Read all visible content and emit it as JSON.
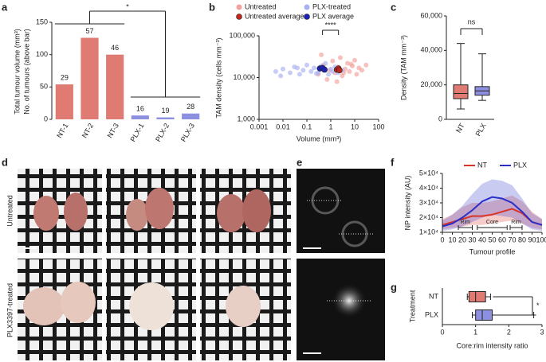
{
  "chart_data": [
    {
      "type": "bar",
      "panel": "a",
      "ylabel": [
        "Total tumour volume (mm³)",
        "No. of tumours (above bar)"
      ],
      "categories": [
        "NT-1",
        "NT-2",
        "NT-3",
        "PLX-1",
        "PLX-2",
        "PLX-3"
      ],
      "values": [
        54,
        126,
        100,
        6,
        3,
        9
      ],
      "counts": [
        29,
        57,
        46,
        16,
        19,
        28
      ],
      "colors": [
        "#e07b73",
        "#e07b73",
        "#e07b73",
        "#8d8fe0",
        "#8d8fe0",
        "#8d8fe0"
      ],
      "ylim": [
        0,
        150
      ],
      "yticks": [
        0,
        50,
        100,
        150
      ],
      "significance": "*"
    },
    {
      "type": "scatter",
      "panel": "b",
      "xlabel": "Volume (mm³)",
      "ylabel": "TAM density (cells mm⁻³)",
      "log_x": true,
      "log_y": true,
      "xlim": [
        0.001,
        100
      ],
      "xticks": [
        0.001,
        0.01,
        0.1,
        1,
        10,
        100
      ],
      "ylim": [
        1000,
        100000
      ],
      "yticks": [
        {
          "value": 1000,
          "label": "1,000"
        },
        {
          "value": 10000,
          "label": "10,000"
        },
        {
          "value": 100000,
          "label": "100,000"
        }
      ],
      "series": [
        {
          "name": "Untreated",
          "color": "#f2a19b",
          "x": [
            0.3,
            0.5,
            0.7,
            0.9,
            1.2,
            1.5,
            2,
            2.5,
            3,
            4,
            5,
            6,
            8,
            10,
            12,
            15,
            20,
            30,
            0.4,
            1.8,
            3.5,
            7
          ],
          "y": [
            12000,
            20000,
            9000,
            15000,
            25000,
            13000,
            18000,
            30000,
            11000,
            16000,
            22000,
            14000,
            19000,
            26000,
            12000,
            17000,
            15000,
            20000,
            35000,
            8000,
            13000,
            21000
          ]
        },
        {
          "name": "PLX-treated",
          "color": "#a9b0f2",
          "x": [
            0.005,
            0.008,
            0.01,
            0.02,
            0.03,
            0.05,
            0.07,
            0.1,
            0.15,
            0.2,
            0.3,
            0.4,
            0.5,
            0.6,
            0.8,
            1,
            1.2,
            1.5,
            2,
            3,
            0.04,
            0.25
          ],
          "y": [
            14000,
            11000,
            16000,
            13000,
            18000,
            12000,
            15000,
            20000,
            14000,
            17000,
            13000,
            19000,
            15000,
            22000,
            12000,
            16000,
            14000,
            18000,
            13000,
            15000,
            17000,
            12500
          ]
        },
        {
          "name": "Untreated average",
          "color": "#c0281e",
          "x": [
            1.8,
            2.1,
            2.3
          ],
          "y": [
            15500,
            16500,
            15000
          ]
        },
        {
          "name": "PLX average",
          "color": "#1d22b8",
          "x": [
            0.35,
            0.45,
            0.55
          ],
          "y": [
            16500,
            17000,
            15500
          ]
        }
      ],
      "significance": "****"
    },
    {
      "type": "box",
      "panel": "c",
      "ylabel": "Density (TAM mm⁻³)",
      "categories": [
        "NT",
        "PLX"
      ],
      "boxes": [
        {
          "min": 6000,
          "q1": 12000,
          "median": 15000,
          "q3": 20000,
          "max": 44000
        },
        {
          "min": 11000,
          "q1": 14000,
          "median": 16500,
          "q3": 19000,
          "max": 38000
        }
      ],
      "colors": [
        "#e07b73",
        "#8d8fe0"
      ],
      "ylim": [
        0,
        60000
      ],
      "yticks": [
        0,
        {
          "value": 20000,
          "label": "20,000"
        },
        {
          "value": 40000,
          "label": "40,000"
        },
        {
          "value": 60000,
          "label": "60,000"
        }
      ],
      "significance": "ns"
    },
    {
      "type": "line",
      "panel": "f",
      "xlabel": "Tumour profile",
      "ylabel": "NP intensity (AU)",
      "x": [
        0,
        10,
        20,
        30,
        40,
        50,
        60,
        70,
        80,
        90,
        100
      ],
      "xlim": [
        0,
        100
      ],
      "xticks": [
        0,
        10,
        20,
        30,
        40,
        50,
        60,
        70,
        80,
        90,
        100
      ],
      "ylim": [
        10000,
        50000
      ],
      "yticks": [
        {
          "value": 10000,
          "label": "1×10⁴"
        },
        {
          "value": 20000,
          "label": "2×10⁴"
        },
        {
          "value": 30000,
          "label": "3×10⁴"
        },
        {
          "value": 40000,
          "label": "4×10⁴"
        },
        {
          "value": 50000,
          "label": "5×10⁴"
        }
      ],
      "series": [
        {
          "name": "NT",
          "color": "#d9332a",
          "values": [
            15000,
            17000,
            19000,
            21000,
            21000,
            22000,
            24000,
            26000,
            23000,
            17000,
            15000
          ],
          "lower": [
            12000,
            13000,
            14000,
            15000,
            15000,
            16000,
            17000,
            18000,
            16000,
            13000,
            12000
          ],
          "upper": [
            19000,
            22000,
            27000,
            30000,
            30000,
            31000,
            33000,
            35000,
            31000,
            24000,
            19000
          ]
        },
        {
          "name": "PLX",
          "color": "#2b2fc9",
          "values": [
            14000,
            16000,
            20000,
            25000,
            31000,
            34000,
            33000,
            30000,
            24000,
            17000,
            15000
          ],
          "lower": [
            11000,
            12000,
            14000,
            17000,
            20000,
            22000,
            21000,
            20000,
            16000,
            12000,
            11000
          ],
          "upper": [
            18000,
            22000,
            28000,
            36000,
            43000,
            46000,
            45000,
            42000,
            33000,
            23000,
            19000
          ]
        }
      ],
      "regions": [
        {
          "label": "Rim",
          "range": [
            16,
            30
          ]
        },
        {
          "label": "Core",
          "range": [
            35,
            65
          ]
        },
        {
          "label": "Rim",
          "range": [
            68,
            80
          ]
        }
      ]
    },
    {
      "type": "hbox",
      "panel": "g",
      "xlabel": "Core:rim intensity ratio",
      "ylabel": "Treatment",
      "categories": [
        "NT",
        "PLX"
      ],
      "boxes": [
        {
          "min": 0.75,
          "q1": 0.8,
          "median": 1.0,
          "q3": 1.3,
          "max": 1.45
        },
        {
          "min": 0.9,
          "q1": 1.0,
          "median": 1.2,
          "q3": 1.5,
          "max": 2.75
        }
      ],
      "colors": [
        "#e07b73",
        "#8d8fe0"
      ],
      "xlim": [
        0,
        3
      ],
      "xticks": [
        0,
        1,
        2,
        3
      ],
      "significance": "*"
    }
  ],
  "photos": {
    "panel": "d",
    "rows": [
      "Untreated",
      "PLX3397-treated"
    ]
  },
  "microscopy": {
    "panel": "e"
  }
}
